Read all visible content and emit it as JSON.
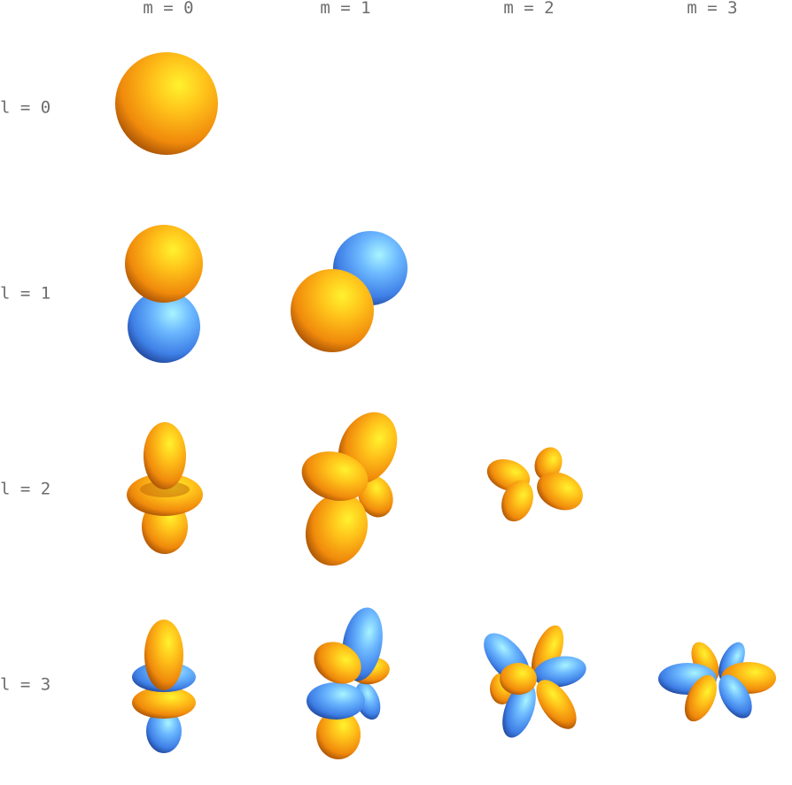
{
  "columns": [
    {
      "label": "m = 0"
    },
    {
      "label": "m = 1"
    },
    {
      "label": "m = 2"
    },
    {
      "label": "m = 3"
    }
  ],
  "rows": [
    {
      "label": "l = 0"
    },
    {
      "label": "l = 1"
    },
    {
      "label": "l = 2"
    },
    {
      "label": "l = 3"
    }
  ],
  "colors": {
    "positive_lobe": "#ffa51a",
    "negative_lobe": "#4f97f0"
  }
}
